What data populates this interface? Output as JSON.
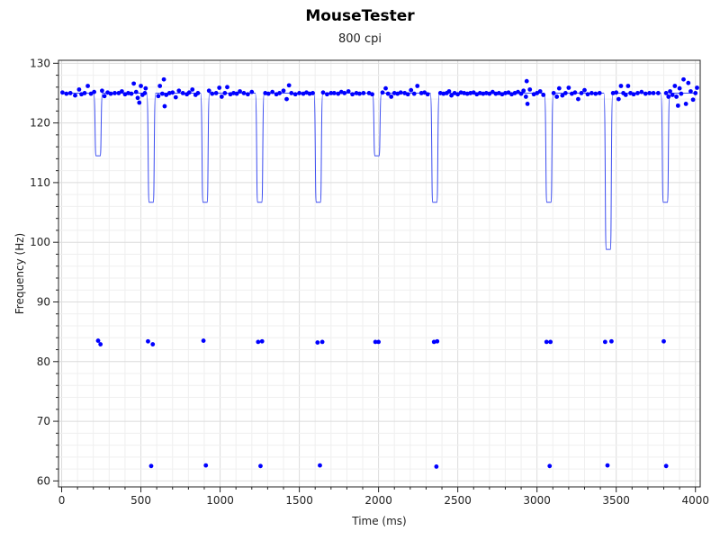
{
  "chart_data": {
    "type": "scatter",
    "title": "MouseTester",
    "subtitle": "800 cpi",
    "xlabel": "Time (ms)",
    "ylabel": "Frequency (Hz)",
    "xlim": [
      -20,
      4030
    ],
    "ylim": [
      59,
      130.5
    ],
    "x_ticks": [
      0,
      500,
      1000,
      1500,
      2000,
      2500,
      3000,
      3500,
      4000
    ],
    "y_ticks": [
      60,
      70,
      80,
      90,
      100,
      110,
      120,
      130
    ],
    "grid": true,
    "baseline_hz": 125,
    "series": [
      {
        "kind": "line",
        "color": "#3b4cf0",
        "dips": [
          {
            "x": 230,
            "y": 114.5
          },
          {
            "x": 565,
            "y": 106.7
          },
          {
            "x": 905,
            "y": 106.7
          },
          {
            "x": 1250,
            "y": 106.7
          },
          {
            "x": 1620,
            "y": 106.7
          },
          {
            "x": 1990,
            "y": 114.5
          },
          {
            "x": 2355,
            "y": 106.7
          },
          {
            "x": 3075,
            "y": 106.7
          },
          {
            "x": 3450,
            "y": 98.8
          },
          {
            "x": 3810,
            "y": 106.7
          }
        ]
      },
      {
        "kind": "points",
        "color": "#0000ff",
        "points": [
          [
            5,
            125.1
          ],
          [
            30,
            124.9
          ],
          [
            55,
            125.0
          ],
          [
            85,
            124.6
          ],
          [
            110,
            125.6
          ],
          [
            125,
            124.8
          ],
          [
            145,
            125.0
          ],
          [
            165,
            126.2
          ],
          [
            185,
            124.9
          ],
          [
            205,
            125.2
          ],
          [
            255,
            125.4
          ],
          [
            270,
            124.5
          ],
          [
            290,
            125.1
          ],
          [
            310,
            124.9
          ],
          [
            335,
            125.0
          ],
          [
            360,
            125.0
          ],
          [
            380,
            125.3
          ],
          [
            400,
            124.8
          ],
          [
            420,
            125.0
          ],
          [
            440,
            124.9
          ],
          [
            455,
            126.6
          ],
          [
            470,
            125.2
          ],
          [
            480,
            124.2
          ],
          [
            490,
            123.4
          ],
          [
            500,
            126.2
          ],
          [
            510,
            124.7
          ],
          [
            525,
            125.0
          ],
          [
            530,
            125.8
          ],
          [
            610,
            124.5
          ],
          [
            620,
            126.2
          ],
          [
            635,
            124.9
          ],
          [
            645,
            127.3
          ],
          [
            650,
            122.8
          ],
          [
            660,
            124.7
          ],
          [
            680,
            125.0
          ],
          [
            700,
            125.1
          ],
          [
            720,
            124.3
          ],
          [
            740,
            125.4
          ],
          [
            765,
            125.0
          ],
          [
            790,
            124.8
          ],
          [
            805,
            125.1
          ],
          [
            825,
            125.6
          ],
          [
            845,
            124.7
          ],
          [
            860,
            125.0
          ],
          [
            930,
            125.4
          ],
          [
            950,
            124.9
          ],
          [
            975,
            125.0
          ],
          [
            995,
            125.9
          ],
          [
            1010,
            124.4
          ],
          [
            1030,
            125.0
          ],
          [
            1045,
            126.0
          ],
          [
            1065,
            124.8
          ],
          [
            1085,
            125.0
          ],
          [
            1105,
            124.9
          ],
          [
            1125,
            125.3
          ],
          [
            1150,
            125.0
          ],
          [
            1175,
            124.8
          ],
          [
            1200,
            125.2
          ],
          [
            1285,
            125.0
          ],
          [
            1305,
            124.9
          ],
          [
            1330,
            125.2
          ],
          [
            1355,
            124.8
          ],
          [
            1375,
            125.0
          ],
          [
            1400,
            125.4
          ],
          [
            1420,
            124.0
          ],
          [
            1435,
            126.3
          ],
          [
            1450,
            125.0
          ],
          [
            1475,
            124.8
          ],
          [
            1500,
            125.0
          ],
          [
            1525,
            124.9
          ],
          [
            1545,
            125.1
          ],
          [
            1565,
            124.9
          ],
          [
            1585,
            125.0
          ],
          [
            1650,
            125.1
          ],
          [
            1675,
            124.8
          ],
          [
            1700,
            125.0
          ],
          [
            1720,
            125.0
          ],
          [
            1745,
            124.9
          ],
          [
            1765,
            125.2
          ],
          [
            1785,
            125.0
          ],
          [
            1810,
            125.3
          ],
          [
            1835,
            124.8
          ],
          [
            1860,
            125.0
          ],
          [
            1880,
            124.9
          ],
          [
            1905,
            125.0
          ],
          [
            1940,
            125.0
          ],
          [
            1960,
            124.8
          ],
          [
            2025,
            125.1
          ],
          [
            2045,
            125.8
          ],
          [
            2060,
            124.9
          ],
          [
            2080,
            124.4
          ],
          [
            2100,
            125.0
          ],
          [
            2120,
            124.9
          ],
          [
            2140,
            125.1
          ],
          [
            2165,
            125.0
          ],
          [
            2185,
            124.8
          ],
          [
            2205,
            125.5
          ],
          [
            2225,
            124.9
          ],
          [
            2245,
            126.2
          ],
          [
            2270,
            125.0
          ],
          [
            2290,
            125.1
          ],
          [
            2310,
            124.8
          ],
          [
            2390,
            125.0
          ],
          [
            2410,
            124.9
          ],
          [
            2430,
            125.0
          ],
          [
            2445,
            125.3
          ],
          [
            2460,
            124.6
          ],
          [
            2480,
            125.0
          ],
          [
            2500,
            124.8
          ],
          [
            2520,
            125.1
          ],
          [
            2540,
            125.0
          ],
          [
            2560,
            124.9
          ],
          [
            2580,
            125.0
          ],
          [
            2600,
            125.1
          ],
          [
            2620,
            124.8
          ],
          [
            2640,
            125.0
          ],
          [
            2660,
            124.9
          ],
          [
            2680,
            125.0
          ],
          [
            2700,
            124.9
          ],
          [
            2720,
            125.2
          ],
          [
            2740,
            124.9
          ],
          [
            2760,
            125.0
          ],
          [
            2780,
            124.8
          ],
          [
            2800,
            125.0
          ],
          [
            2820,
            125.1
          ],
          [
            2840,
            124.8
          ],
          [
            2860,
            125.0
          ],
          [
            2880,
            125.2
          ],
          [
            2900,
            124.9
          ],
          [
            2915,
            125.4
          ],
          [
            2930,
            124.4
          ],
          [
            2935,
            127.0
          ],
          [
            2940,
            123.2
          ],
          [
            2955,
            125.6
          ],
          [
            2980,
            124.8
          ],
          [
            3000,
            125.0
          ],
          [
            3020,
            125.3
          ],
          [
            3040,
            124.7
          ],
          [
            3105,
            125.0
          ],
          [
            3125,
            124.4
          ],
          [
            3140,
            125.8
          ],
          [
            3160,
            124.6
          ],
          [
            3180,
            125.0
          ],
          [
            3200,
            125.9
          ],
          [
            3220,
            124.9
          ],
          [
            3240,
            125.1
          ],
          [
            3260,
            124.0
          ],
          [
            3280,
            125.0
          ],
          [
            3300,
            125.5
          ],
          [
            3320,
            124.8
          ],
          [
            3345,
            125.0
          ],
          [
            3370,
            124.9
          ],
          [
            3395,
            125.0
          ],
          [
            3480,
            125.0
          ],
          [
            3500,
            125.1
          ],
          [
            3515,
            124.0
          ],
          [
            3530,
            126.2
          ],
          [
            3545,
            125.0
          ],
          [
            3560,
            124.7
          ],
          [
            3575,
            126.2
          ],
          [
            3590,
            125.0
          ],
          [
            3610,
            124.8
          ],
          [
            3635,
            125.0
          ],
          [
            3660,
            125.2
          ],
          [
            3685,
            124.9
          ],
          [
            3710,
            125.0
          ],
          [
            3735,
            125.0
          ],
          [
            3765,
            125.0
          ],
          [
            3840,
            125.3
          ],
          [
            3855,
            124.7
          ],
          [
            3870,
            126.2
          ],
          [
            3880,
            124.4
          ],
          [
            3890,
            122.9
          ],
          [
            3900,
            125.8
          ],
          [
            3910,
            124.9
          ],
          [
            3925,
            127.3
          ],
          [
            3940,
            123.2
          ],
          [
            3955,
            126.7
          ],
          [
            3970,
            125.3
          ],
          [
            3985,
            123.9
          ],
          [
            4000,
            125.0
          ],
          [
            4010,
            125.9
          ],
          [
            3815,
            125.0
          ],
          [
            3830,
            124.4
          ]
        ]
      },
      {
        "kind": "points",
        "color": "#0000ff",
        "points": [
          [
            230,
            83.5
          ],
          [
            245,
            82.9
          ],
          [
            545,
            83.4
          ],
          [
            575,
            82.9
          ],
          [
            895,
            83.5
          ],
          [
            1240,
            83.3
          ],
          [
            1265,
            83.4
          ],
          [
            1615,
            83.2
          ],
          [
            1645,
            83.3
          ],
          [
            1980,
            83.3
          ],
          [
            2000,
            83.3
          ],
          [
            2350,
            83.3
          ],
          [
            2370,
            83.4
          ],
          [
            3060,
            83.3
          ],
          [
            3085,
            83.3
          ],
          [
            3430,
            83.3
          ],
          [
            3470,
            83.4
          ],
          [
            3800,
            83.4
          ]
        ]
      },
      {
        "kind": "points",
        "color": "#0000ff",
        "points": [
          [
            565,
            62.5
          ],
          [
            910,
            62.6
          ],
          [
            1255,
            62.5
          ],
          [
            1630,
            62.6
          ],
          [
            2365,
            62.4
          ],
          [
            3080,
            62.5
          ],
          [
            3445,
            62.6
          ],
          [
            3815,
            62.5
          ]
        ]
      }
    ]
  }
}
